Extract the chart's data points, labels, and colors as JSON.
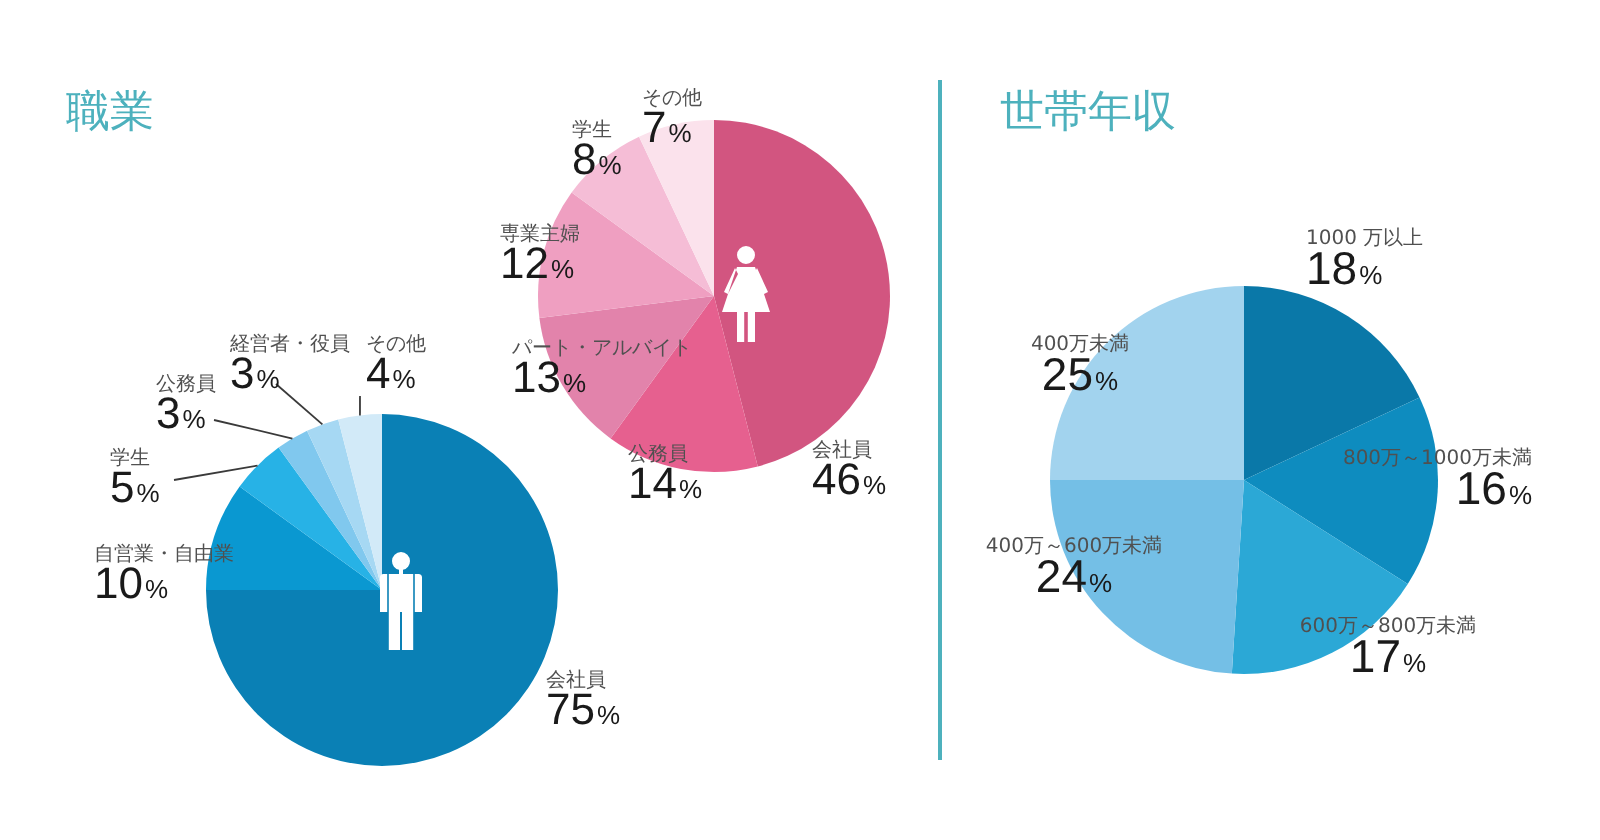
{
  "chart_data": [
    {
      "type": "pie",
      "title": "職業",
      "categories": [
        "会社員",
        "自営業・自由業",
        "学生",
        "公務員",
        "経営者・役員",
        "その他"
      ],
      "values": [
        75,
        10,
        5,
        3,
        3,
        4
      ],
      "colors": [
        "#0a80b5",
        "#0a98d1",
        "#27b2e6",
        "#80c8ee",
        "#a6d8f3",
        "#d2eaf8"
      ],
      "value_labels": [
        "75%",
        "10%",
        "5%",
        "3%",
        "3%",
        "4%"
      ]
    },
    {
      "type": "pie",
      "categories": [
        "会社員",
        "公務員",
        "パート・アルバイト",
        "専業主婦",
        "学生",
        "その他"
      ],
      "values": [
        46,
        14,
        13,
        12,
        8,
        7
      ],
      "colors": [
        "#d25580",
        "#e6608f",
        "#e283ab",
        "#ef9fc1",
        "#f5bdd6",
        "#fbe2ec"
      ],
      "value_labels": [
        "46%",
        "14%",
        "13%",
        "12%",
        "8%",
        "7%"
      ]
    },
    {
      "type": "pie",
      "title": "世帯年収",
      "categories": [
        "1000 万以上",
        "800万～1000万未満",
        "600万～800万未満",
        "400万～600万未満",
        "400万未満"
      ],
      "values": [
        18,
        16,
        17,
        24,
        25
      ],
      "colors": [
        "#0a78a8",
        "#0e8cbf",
        "#2ba8d6",
        "#74bfe6",
        "#a2d3ee"
      ],
      "value_labels": [
        "18%",
        "16%",
        "17%",
        "24%",
        "25%"
      ]
    }
  ]
}
